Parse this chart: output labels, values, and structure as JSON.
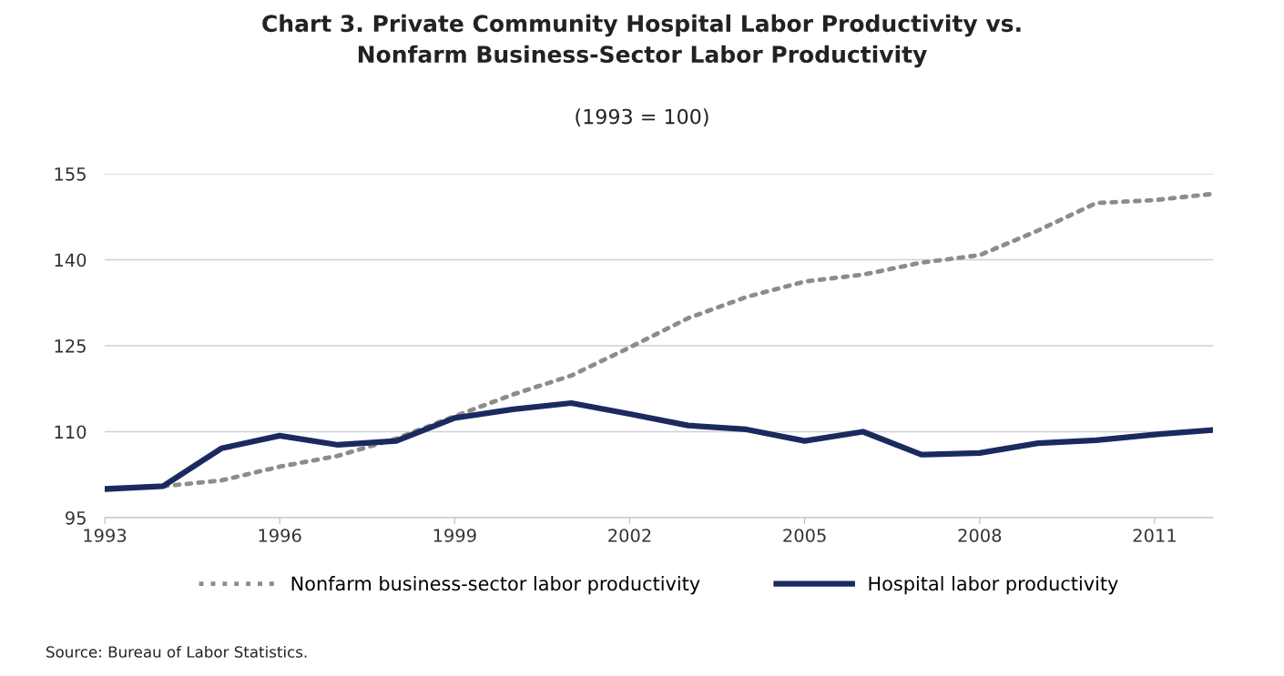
{
  "chart_data": {
    "type": "line",
    "title": "Chart 3. Private Community Hospital Labor Productivity vs.\nNonfarm Business-Sector Labor Productivity",
    "subtitle": "(1993 = 100)",
    "x": [
      1993,
      1994,
      1995,
      1996,
      1997,
      1998,
      1999,
      2000,
      2001,
      2002,
      2003,
      2004,
      2005,
      2006,
      2007,
      2008,
      2009,
      2010,
      2011,
      2012
    ],
    "series": [
      {
        "name": "Nonfarm business-sector labor productivity",
        "color": "#8c8c8c",
        "line_style": "dotted",
        "values": [
          100,
          100.5,
          101.5,
          103.9,
          105.8,
          108.8,
          112.7,
          116.5,
          119.8,
          124.7,
          129.8,
          133.5,
          136.2,
          137.4,
          139.5,
          140.8,
          145.1,
          149.9,
          150.4,
          151.5
        ]
      },
      {
        "name": "Hospital labor productivity",
        "color": "#1b2a5e",
        "line_style": "solid",
        "values": [
          100,
          100.5,
          107.1,
          109.3,
          107.7,
          108.4,
          112.4,
          113.9,
          115.0,
          113.1,
          111.1,
          110.4,
          108.4,
          110.0,
          106.0,
          106.3,
          108.0,
          108.5,
          109.5,
          110.3
        ]
      }
    ],
    "xlim": [
      1993,
      2012
    ],
    "xticks": [
      1993,
      1996,
      1999,
      2002,
      2005,
      2008,
      2011
    ],
    "ylim": [
      95,
      155
    ],
    "yticks": [
      95,
      110,
      125,
      140,
      155
    ],
    "grid": "y",
    "legend": "bottom",
    "annotations": [
      "Source: Bureau of Labor Statistics."
    ]
  }
}
